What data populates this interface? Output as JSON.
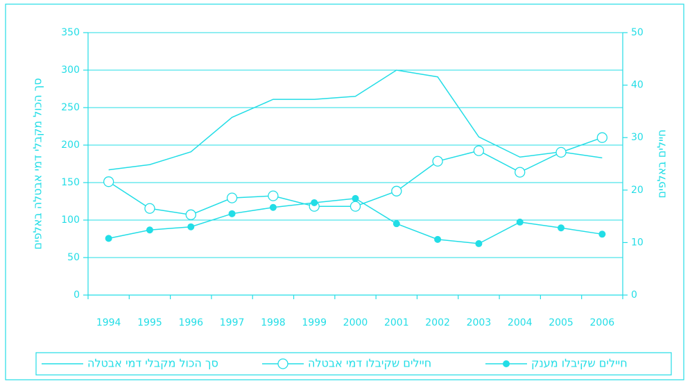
{
  "chart_data": {
    "type": "line",
    "ylabel": "סך הכול מקבלי דמי אבטלה באלפים",
    "y2label": "חיילים באלפים",
    "categories": [
      "1994",
      "1995",
      "1996",
      "1997",
      "1998",
      "1999",
      "2000",
      "2001",
      "2002",
      "2003",
      "2004",
      "2005",
      "2006"
    ],
    "series": [
      {
        "name": "סך הכול מקבלי דמי אבטלה",
        "color": "#22dde6",
        "marker": "none",
        "axis": "y",
        "values": [
          167,
          174,
          191,
          237,
          261,
          261,
          265,
          300,
          291,
          211,
          184,
          191,
          183
        ]
      },
      {
        "name": "חיילים שקיבלו דמי אבטלה",
        "color": "#22dde6",
        "marker": "open-circle",
        "axis": "y2",
        "values": [
          21.6,
          16.5,
          15.3,
          18.5,
          18.9,
          16.9,
          16.9,
          19.8,
          25.5,
          27.5,
          23.4,
          27.2,
          30.0
        ]
      },
      {
        "name": "חיילים שקיבלו מענק",
        "color": "#22dde6",
        "marker": "filled-circle",
        "axis": "y2",
        "values": [
          10.8,
          12.4,
          13.0,
          15.5,
          16.7,
          17.6,
          18.4,
          13.6,
          10.6,
          9.8,
          13.9,
          12.8,
          11.6
        ]
      }
    ],
    "ylim": [
      0,
      350
    ],
    "yticks": [
      0,
      50,
      100,
      150,
      200,
      250,
      300,
      350
    ],
    "y2lim": [
      0,
      50
    ],
    "y2ticks": [
      0,
      10,
      20,
      30,
      40,
      50
    ],
    "grid": true,
    "legend": "bottom"
  }
}
